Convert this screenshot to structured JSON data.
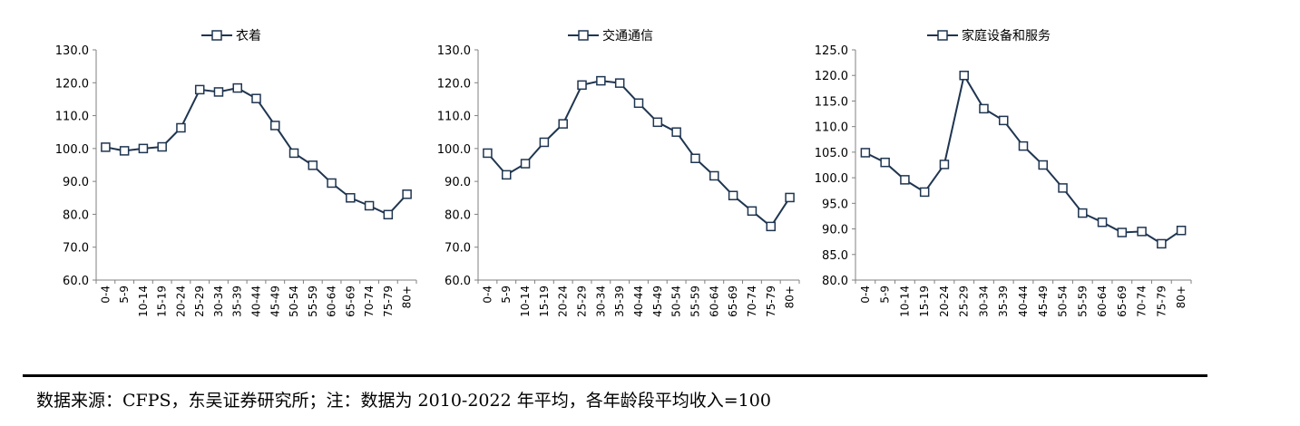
{
  "chart_data": [
    {
      "type": "line",
      "legend": "衣着",
      "legend_position": "top",
      "ylim": [
        60,
        130
      ],
      "yticks": [
        "130.0",
        "120.0",
        "110.0",
        "100.0",
        "90.0",
        "80.0",
        "70.0",
        "60.0"
      ],
      "categories": [
        "0-4",
        "5-9",
        "10-14",
        "15-19",
        "20-24",
        "25-29",
        "30-34",
        "35-39",
        "40-44",
        "45-49",
        "50-54",
        "55-59",
        "60-64",
        "65-69",
        "70-74",
        "75-79",
        "80+"
      ],
      "series": [
        {
          "name": "衣着",
          "values": [
            100.4,
            99.3,
            100.0,
            100.5,
            106.3,
            117.9,
            117.2,
            118.4,
            115.2,
            107.0,
            98.6,
            94.9,
            89.5,
            85.0,
            82.6,
            79.9,
            86.1
          ]
        }
      ]
    },
    {
      "type": "line",
      "legend": "交通通信",
      "legend_position": "top",
      "ylim": [
        60,
        130
      ],
      "yticks": [
        "130.0",
        "120.0",
        "110.0",
        "100.0",
        "90.0",
        "80.0",
        "70.0",
        "60.0"
      ],
      "categories": [
        "0-4",
        "5-9",
        "10-14",
        "15-19",
        "20-24",
        "25-29",
        "30-34",
        "35-39",
        "40-44",
        "45-49",
        "50-54",
        "55-59",
        "60-64",
        "65-69",
        "70-74",
        "75-79",
        "80+"
      ],
      "series": [
        {
          "name": "交通通信",
          "values": [
            98.6,
            92.0,
            95.4,
            101.9,
            107.5,
            119.3,
            120.6,
            119.9,
            113.8,
            108.0,
            105.0,
            97.0,
            91.7,
            85.7,
            81.0,
            76.3,
            85.1
          ]
        }
      ]
    },
    {
      "type": "line",
      "legend": "家庭设备和服务",
      "legend_position": "top",
      "ylim": [
        80,
        125
      ],
      "yticks": [
        "125.0",
        "120.0",
        "115.0",
        "110.0",
        "105.0",
        "100.0",
        "95.0",
        "90.0",
        "85.0",
        "80.0"
      ],
      "categories": [
        "0-4",
        "5-9",
        "10-14",
        "15-19",
        "20-24",
        "25-29",
        "30-34",
        "35-39",
        "40-44",
        "45-49",
        "50-54",
        "55-59",
        "60-64",
        "65-69",
        "70-74",
        "75-79",
        "80+"
      ],
      "series": [
        {
          "name": "家庭设备和服务",
          "values": [
            104.9,
            103.0,
            99.6,
            97.2,
            102.6,
            120.0,
            113.5,
            111.2,
            106.2,
            102.5,
            98.0,
            93.1,
            91.3,
            89.3,
            89.5,
            87.1,
            89.7
          ]
        }
      ]
    }
  ],
  "source_text": "数据来源：CFPS，东吴证券研究所；注：数据为 2010-2022 年平均，各年龄段平均收入=100",
  "colors": {
    "line": "#1f3550",
    "axis": "#808080",
    "text": "#000000"
  }
}
